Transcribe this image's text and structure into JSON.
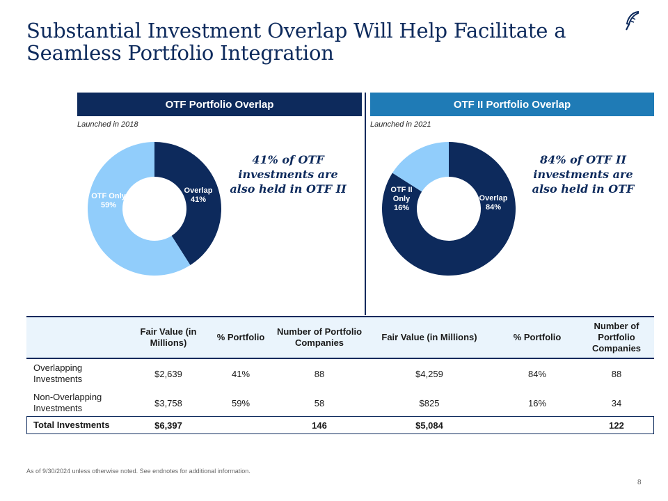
{
  "title": "Substantial Investment Overlap Will Help Facilitate a Seamless Portfolio Integration",
  "logo_icon": "quill-feather-icon",
  "colors": {
    "navy": "#0d2a5c",
    "light_blue": "#91cdfb",
    "accent_blue": "#1f7bb6",
    "header_tint": "#eaf4fc"
  },
  "otf": {
    "header": "OTF Portfolio Overlap",
    "launched": "Launched in 2018",
    "callout": "41% of OTF investments are also held in OTF II",
    "overlap_label": "Overlap",
    "overlap_pct": "41%",
    "only_label": "OTF Only",
    "only_pct": "59%"
  },
  "otf2": {
    "header": "OTF II Portfolio Overlap",
    "launched": "Launched in 2021",
    "callout": "84% of OTF II investments are also held in OTF",
    "overlap_label": "Overlap",
    "overlap_pct": "84%",
    "only_label_line1": "OTF II",
    "only_label_line2": "Only",
    "only_pct": "16%"
  },
  "chart_data": [
    {
      "type": "pie",
      "categories": [
        "Overlap",
        "OTF Only"
      ],
      "values": [
        41,
        59
      ],
      "colors": [
        "#0d2a5c",
        "#91cdfb"
      ]
    },
    {
      "type": "pie",
      "categories": [
        "Overlap",
        "OTF II Only"
      ],
      "values": [
        84,
        16
      ],
      "colors": [
        "#0d2a5c",
        "#91cdfb"
      ]
    }
  ],
  "table": {
    "headers": {
      "fv": "Fair Value (in Millions)",
      "pct": "% Portfolio",
      "num": "Number of Portfolio Companies"
    },
    "rows": [
      {
        "label": "Overlapping Investments",
        "otf_fv": "$2,639",
        "otf_pct": "41%",
        "otf_num": "88",
        "otf2_fv": "$4,259",
        "otf2_pct": "84%",
        "otf2_num": "88"
      },
      {
        "label": "Non-Overlapping Investments",
        "otf_fv": "$3,758",
        "otf_pct": "59%",
        "otf_num": "58",
        "otf2_fv": "$825",
        "otf2_pct": "16%",
        "otf2_num": "34"
      }
    ],
    "total": {
      "label": "Total Investments",
      "otf_fv": "$6,397",
      "otf_num": "146",
      "otf2_fv": "$5,084",
      "otf2_num": "122"
    }
  },
  "footnote": "As of 9/30/2024 unless otherwise noted. See endnotes for additional information.",
  "page_number": "8"
}
